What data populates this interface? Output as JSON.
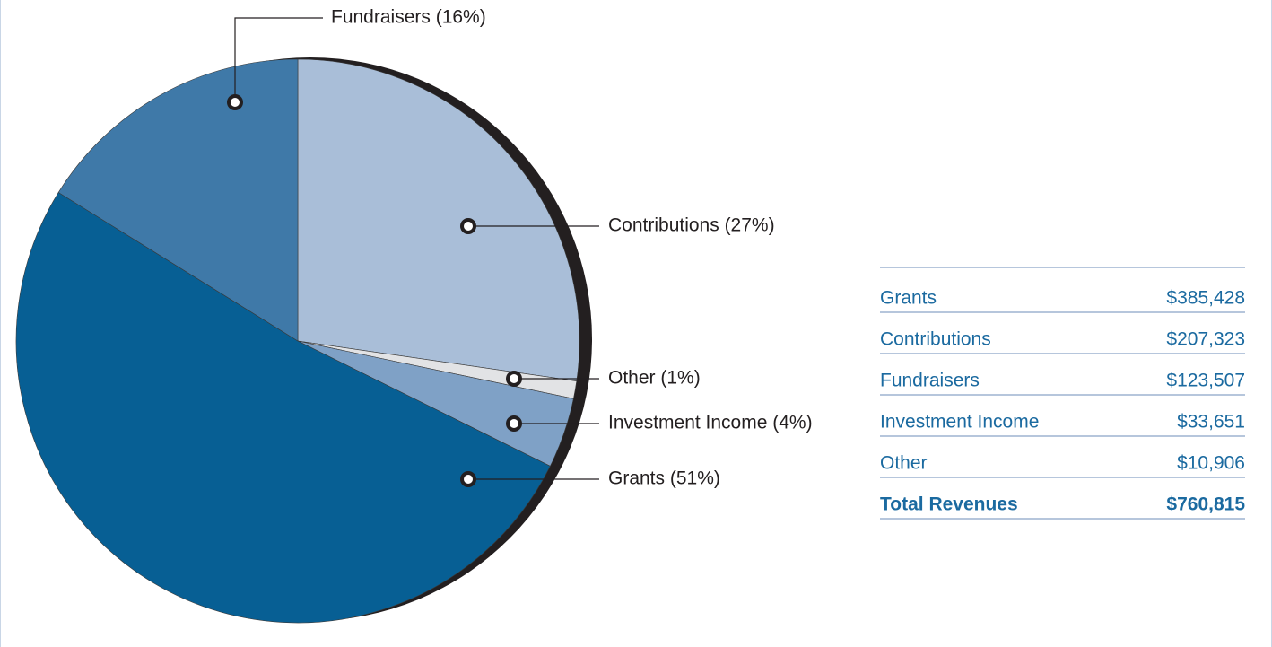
{
  "chart_data": {
    "type": "pie",
    "categories": [
      "Contributions",
      "Other",
      "Investment Income",
      "Grants",
      "Fundraisers"
    ],
    "values": [
      27,
      1,
      4,
      51,
      16
    ],
    "value_labels": [
      "Contributions (27%)",
      "Other (1%)",
      "Investment Income (4%)",
      "Grants (51%)",
      "Fundraisers (16%)"
    ],
    "colors": [
      "#a9bed8",
      "#e2e3e5",
      "#7fa1c6",
      "#075f94",
      "#3f79a8"
    ]
  },
  "table": {
    "rows": [
      [
        "Grants",
        "$385,428"
      ],
      [
        "Contributions",
        "$207,323"
      ],
      [
        "Fundraisers",
        "$123,507"
      ],
      [
        "Investment Income",
        "$33,651"
      ],
      [
        "Other",
        "$10,906"
      ]
    ],
    "total": [
      "Total Revenues",
      "$760,815"
    ]
  }
}
